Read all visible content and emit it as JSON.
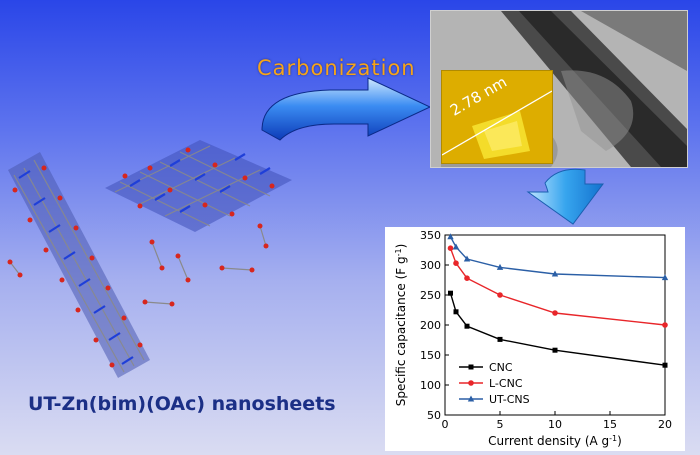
{
  "labels": {
    "carbonization": "Carbonization",
    "thickness": "2.78 nm",
    "sheet_name": "UT-Zn(bim)(OAc) nanosheets"
  },
  "colors": {
    "background_top": "#2a46e8",
    "background_bottom": "#dadcf2",
    "carbonization_text": "#f5a41a",
    "title_text": "#1b2f86"
  },
  "chart_data": {
    "type": "line",
    "x": [
      0.5,
      1,
      2,
      5,
      10,
      20
    ],
    "series": [
      {
        "name": "CNC",
        "values": [
          253,
          222,
          198,
          176,
          158,
          133
        ],
        "color": "#000000",
        "marker": "square"
      },
      {
        "name": "L-CNC",
        "values": [
          328,
          303,
          278,
          250,
          220,
          200
        ],
        "color": "#e8262a",
        "marker": "circle"
      },
      {
        "name": "UT-CNS",
        "values": [
          347,
          330,
          310,
          296,
          285,
          279
        ],
        "color": "#2b5fa6",
        "marker": "triangle"
      }
    ],
    "xlabel": "Current density (A g",
    "xlabel_sup": "-1",
    "ylabel": "Specific capacitance (F g",
    "ylabel_sup": "-1",
    "xlim": [
      0,
      20
    ],
    "ylim": [
      50,
      350
    ],
    "xticks": [
      "0",
      "5",
      "10",
      "15",
      "20"
    ],
    "yticks": [
      "50",
      "100",
      "150",
      "200",
      "250",
      "300",
      "350"
    ],
    "legend_position": "bottom-left",
    "grid": false
  }
}
